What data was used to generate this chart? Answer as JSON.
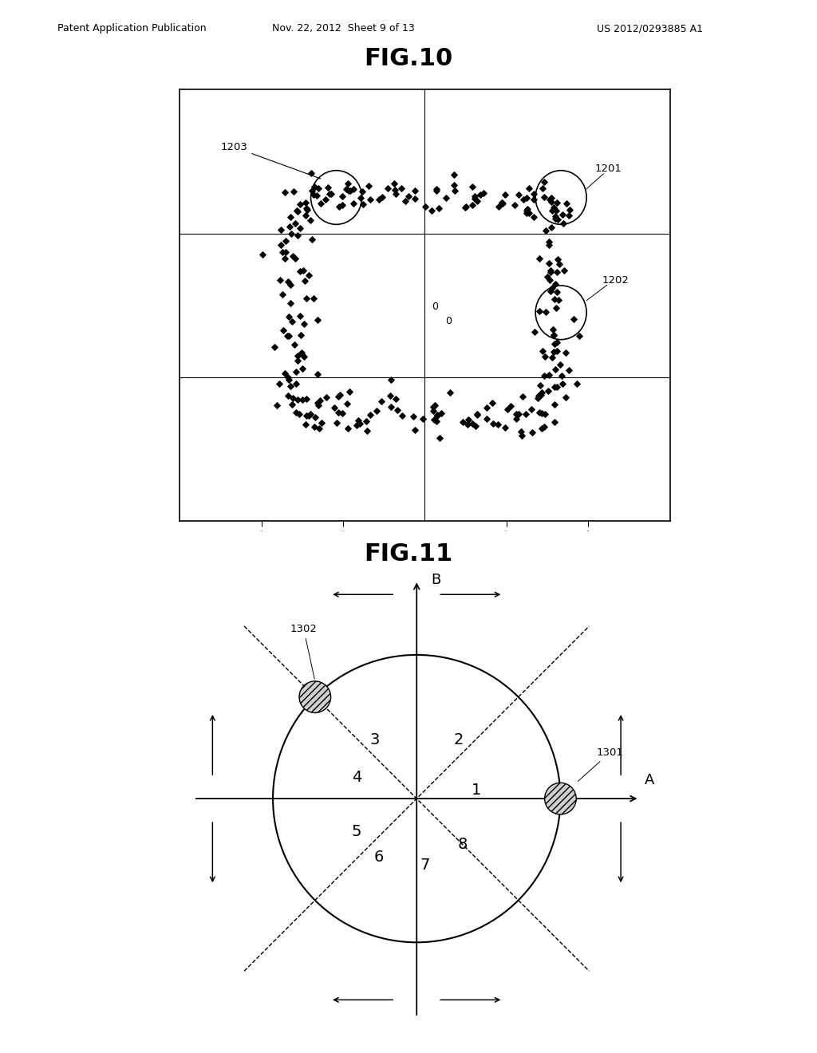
{
  "fig10_title": "FIG.10",
  "fig11_title": "FIG.11",
  "header_left": "Patent Application Publication",
  "header_mid": "Nov. 22, 2012  Sheet 9 of 13",
  "header_right": "US 2012/0293885 A1",
  "background_color": "#ffffff",
  "fig10_label_1201": "1201",
  "fig10_label_1202": "1202",
  "fig10_label_1203": "1203",
  "fig11_label_1301": "1301",
  "fig11_label_1302": "1302",
  "fig11_axis_a": "A",
  "fig11_axis_b": "B"
}
